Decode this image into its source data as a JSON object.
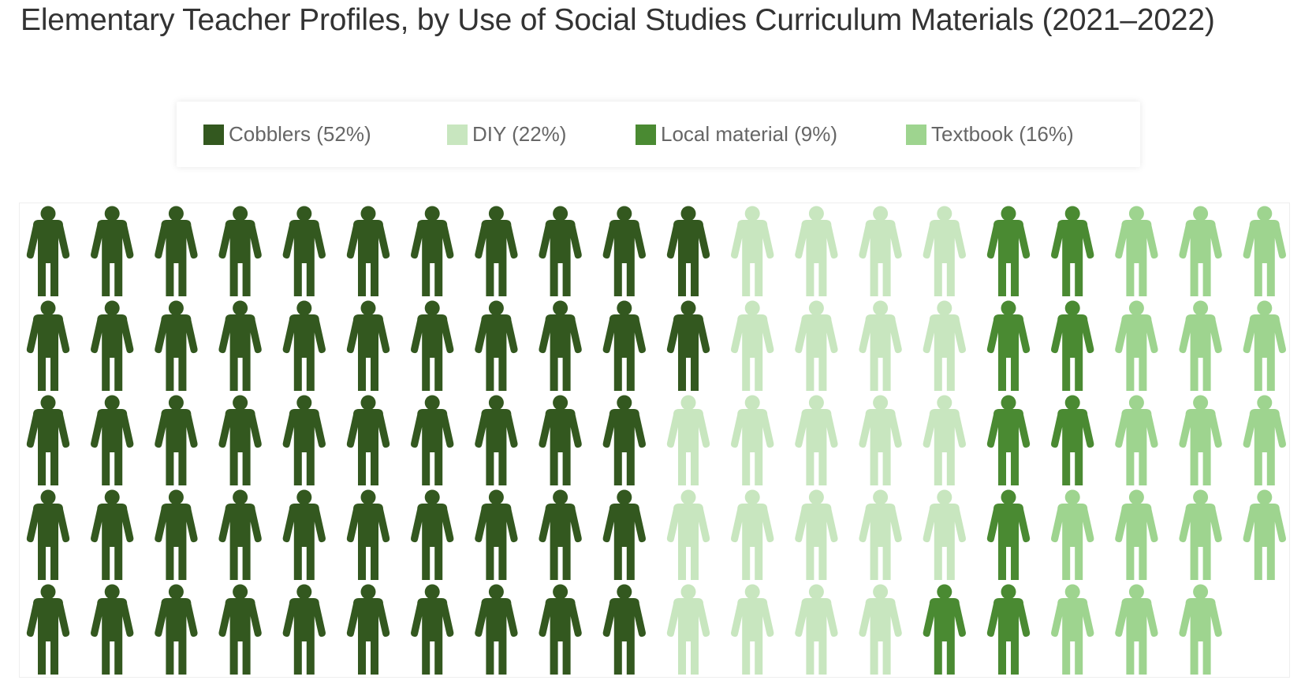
{
  "chart_data": {
    "type": "pictograph",
    "title": "Elementary Teacher Profiles, by Use of Social Studies Curriculum Materials (2021–2022)",
    "legend_position": "top-center",
    "rows": 5,
    "columns": 20,
    "fill_order": "column-major, top-to-bottom, left-to-right",
    "series": [
      {
        "name": "Cobblers (52%)",
        "value": 52,
        "color": "#33581f"
      },
      {
        "name": "DIY (22%)",
        "value": 22,
        "color": "#c8e6bf"
      },
      {
        "name": "Local material (9%)",
        "value": 9,
        "color": "#4a8a32"
      },
      {
        "name": "Textbook (16%)",
        "value": 16,
        "color": "#9ed48f"
      }
    ]
  }
}
